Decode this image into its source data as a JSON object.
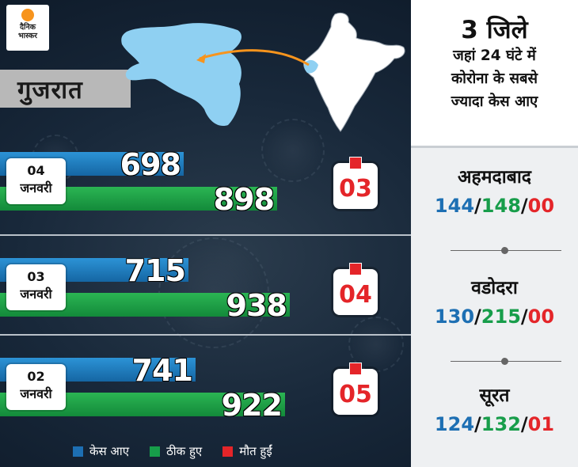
{
  "brand": {
    "line1": "दैनिक",
    "line2": "भास्कर"
  },
  "title": "गुजरात",
  "panel": {
    "heading": "3 जिले",
    "lines": [
      "जहां 24 घंटे में",
      "कोरोना के सबसे",
      "ज्यादा केस आए"
    ],
    "cities": [
      {
        "name": "अहमदाबाद",
        "cases": "144",
        "recovered": "148",
        "deaths": "00"
      },
      {
        "name": "वडोदरा",
        "cases": "130",
        "recovered": "215",
        "deaths": "00"
      },
      {
        "name": "सूरत",
        "cases": "124",
        "recovered": "132",
        "deaths": "01"
      }
    ],
    "sep": "/"
  },
  "rows": [
    {
      "day": "04",
      "month": "जनवरी",
      "cases": 698,
      "recovered": 898,
      "deaths": "03"
    },
    {
      "day": "03",
      "month": "जनवरी",
      "cases": 715,
      "recovered": 938,
      "deaths": "04"
    },
    {
      "day": "02",
      "month": "जनवरी",
      "cases": 741,
      "recovered": 922,
      "deaths": "05"
    }
  ],
  "legend": [
    {
      "label": "केस आए",
      "color": "#1d6fb3"
    },
    {
      "label": "ठीक हुए",
      "color": "#179d4a"
    },
    {
      "label": "मौत हुईं",
      "color": "#e42529"
    }
  ],
  "colors": {
    "cases": "#1d6fb3",
    "recovered": "#179d4a",
    "deaths": "#e42529",
    "title_bar": "#b8b8b8"
  }
}
